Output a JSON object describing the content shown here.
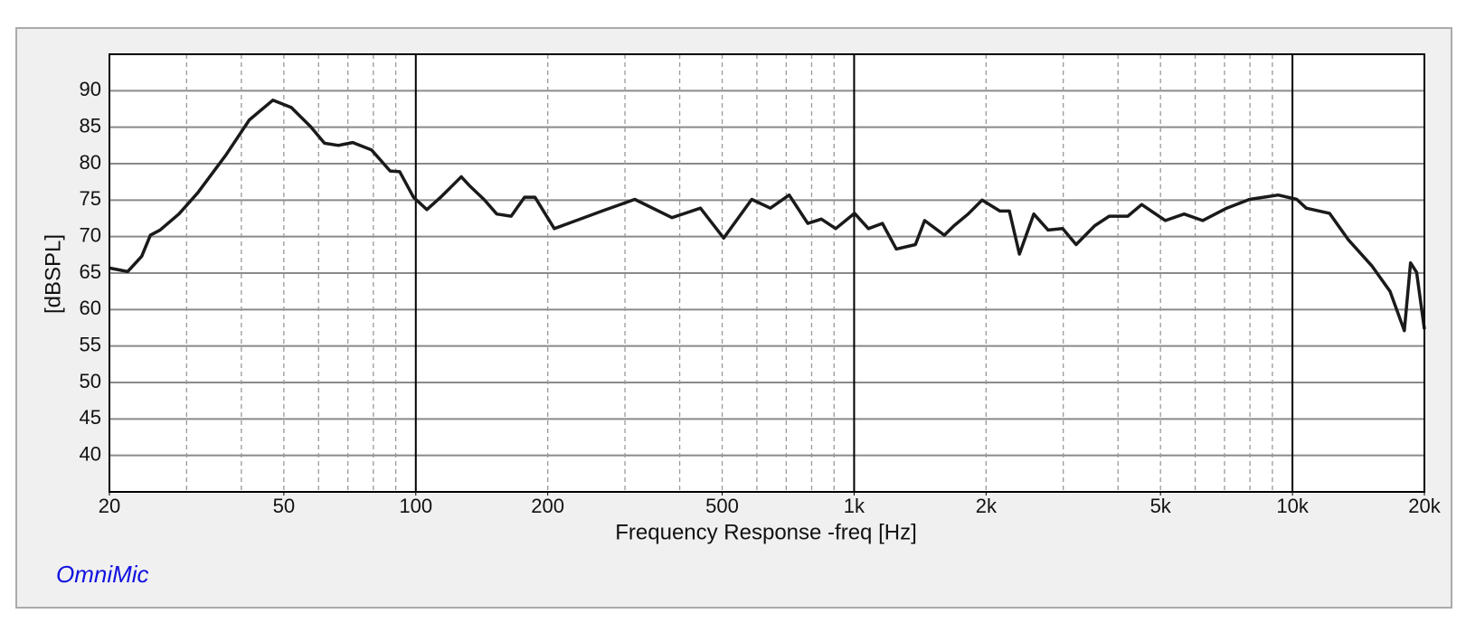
{
  "chart_data": {
    "type": "line",
    "xscale": "log",
    "xlabel": "Frequency Response -freq [Hz]",
    "ylabel": "[dBSPL]",
    "brand": "OmniMic",
    "xlim": [
      20,
      20000
    ],
    "ylim": [
      35,
      95
    ],
    "xticks": [
      20,
      50,
      100,
      200,
      500,
      {
        "value": 1000,
        "label": "1k"
      },
      {
        "value": 2000,
        "label": "2k"
      },
      {
        "value": 5000,
        "label": "5k"
      },
      {
        "value": 10000,
        "label": "10k"
      },
      {
        "value": 20000,
        "label": "20k"
      }
    ],
    "x_grid": [
      30,
      40,
      50,
      60,
      70,
      80,
      90,
      100,
      200,
      300,
      400,
      500,
      600,
      700,
      800,
      900,
      1000,
      2000,
      3000,
      4000,
      5000,
      6000,
      7000,
      8000,
      9000,
      10000
    ],
    "yticks": [
      40,
      45,
      50,
      55,
      60,
      65,
      70,
      75,
      80,
      85,
      90
    ],
    "grid": true,
    "series": [
      {
        "name": "Frequency Response",
        "color": "#1a1a1a",
        "x": [
          20,
          22,
          23.7,
          24.8,
          26.1,
          28.8,
          31.8,
          36.9,
          41.7,
          47.2,
          52,
          57.5,
          61.9,
          66.6,
          71.8,
          79.2,
          87.4,
          91.9,
          98.8,
          106,
          114,
          127,
          133,
          143,
          153,
          165,
          177,
          187,
          207,
          266,
          316,
          384,
          446,
          504,
          584,
          644,
          711,
          784,
          842,
          908,
          1002,
          1078,
          1160,
          1248,
          1380,
          1448,
          1606,
          1690,
          1820,
          1958,
          2150,
          2260,
          2383,
          2570,
          2770,
          2990,
          3210,
          3540,
          3820,
          4210,
          4530,
          5130,
          5660,
          6240,
          7080,
          7980,
          9280,
          10230,
          10750,
          12150,
          13400,
          15170,
          16700,
          18000,
          18600,
          19200,
          20000
        ],
        "values": [
          65.7,
          65.2,
          67.3,
          70.2,
          70.9,
          73.1,
          76.0,
          81.2,
          86.0,
          88.7,
          87.7,
          85.1,
          82.8,
          82.5,
          82.9,
          81.9,
          79.0,
          78.9,
          75.4,
          73.7,
          75.4,
          78.2,
          76.9,
          75.1,
          73.1,
          72.8,
          75.4,
          75.4,
          71.1,
          73.5,
          75.1,
          72.6,
          73.9,
          69.8,
          75.1,
          73.9,
          75.7,
          71.8,
          72.4,
          71.1,
          73.2,
          71.1,
          71.8,
          68.3,
          68.9,
          72.2,
          70.2,
          71.5,
          73.1,
          75.0,
          73.5,
          73.5,
          67.6,
          73.1,
          70.9,
          71.1,
          68.9,
          71.5,
          72.8,
          72.8,
          74.4,
          72.2,
          73.1,
          72.2,
          73.9,
          75.1,
          75.7,
          75.1,
          73.9,
          73.2,
          69.6,
          66.0,
          62.5,
          57.1,
          66.4,
          65.1,
          57.3
        ]
      }
    ]
  }
}
